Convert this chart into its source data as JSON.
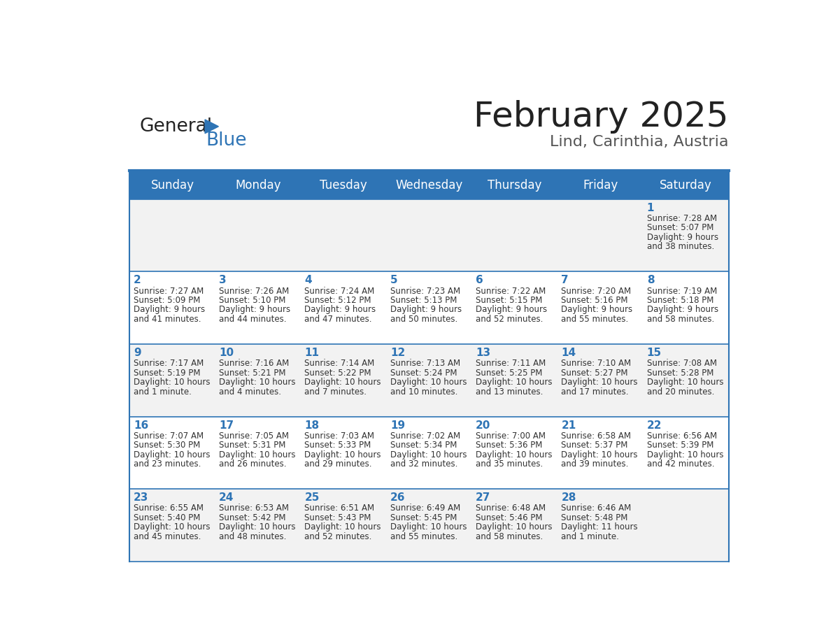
{
  "title": "February 2025",
  "subtitle": "Lind, Carinthia, Austria",
  "days_of_week": [
    "Sunday",
    "Monday",
    "Tuesday",
    "Wednesday",
    "Thursday",
    "Friday",
    "Saturday"
  ],
  "header_bg_color": "#2E74B5",
  "header_text_color": "#FFFFFF",
  "cell_bg_color_odd": "#F2F2F2",
  "cell_bg_color_even": "#FFFFFF",
  "day_number_color": "#2E74B5",
  "text_color": "#333333",
  "border_color": "#2E74B5",
  "logo_general_color": "#222222",
  "logo_blue_color": "#2E74B5",
  "calendar_data": [
    [
      null,
      null,
      null,
      null,
      null,
      null,
      {
        "day": 1,
        "sunrise": "7:28 AM",
        "sunset": "5:07 PM",
        "daylight": "9 hours and 38 minutes."
      }
    ],
    [
      {
        "day": 2,
        "sunrise": "7:27 AM",
        "sunset": "5:09 PM",
        "daylight": "9 hours and 41 minutes."
      },
      {
        "day": 3,
        "sunrise": "7:26 AM",
        "sunset": "5:10 PM",
        "daylight": "9 hours and 44 minutes."
      },
      {
        "day": 4,
        "sunrise": "7:24 AM",
        "sunset": "5:12 PM",
        "daylight": "9 hours and 47 minutes."
      },
      {
        "day": 5,
        "sunrise": "7:23 AM",
        "sunset": "5:13 PM",
        "daylight": "9 hours and 50 minutes."
      },
      {
        "day": 6,
        "sunrise": "7:22 AM",
        "sunset": "5:15 PM",
        "daylight": "9 hours and 52 minutes."
      },
      {
        "day": 7,
        "sunrise": "7:20 AM",
        "sunset": "5:16 PM",
        "daylight": "9 hours and 55 minutes."
      },
      {
        "day": 8,
        "sunrise": "7:19 AM",
        "sunset": "5:18 PM",
        "daylight": "9 hours and 58 minutes."
      }
    ],
    [
      {
        "day": 9,
        "sunrise": "7:17 AM",
        "sunset": "5:19 PM",
        "daylight": "10 hours and 1 minute."
      },
      {
        "day": 10,
        "sunrise": "7:16 AM",
        "sunset": "5:21 PM",
        "daylight": "10 hours and 4 minutes."
      },
      {
        "day": 11,
        "sunrise": "7:14 AM",
        "sunset": "5:22 PM",
        "daylight": "10 hours and 7 minutes."
      },
      {
        "day": 12,
        "sunrise": "7:13 AM",
        "sunset": "5:24 PM",
        "daylight": "10 hours and 10 minutes."
      },
      {
        "day": 13,
        "sunrise": "7:11 AM",
        "sunset": "5:25 PM",
        "daylight": "10 hours and 13 minutes."
      },
      {
        "day": 14,
        "sunrise": "7:10 AM",
        "sunset": "5:27 PM",
        "daylight": "10 hours and 17 minutes."
      },
      {
        "day": 15,
        "sunrise": "7:08 AM",
        "sunset": "5:28 PM",
        "daylight": "10 hours and 20 minutes."
      }
    ],
    [
      {
        "day": 16,
        "sunrise": "7:07 AM",
        "sunset": "5:30 PM",
        "daylight": "10 hours and 23 minutes."
      },
      {
        "day": 17,
        "sunrise": "7:05 AM",
        "sunset": "5:31 PM",
        "daylight": "10 hours and 26 minutes."
      },
      {
        "day": 18,
        "sunrise": "7:03 AM",
        "sunset": "5:33 PM",
        "daylight": "10 hours and 29 minutes."
      },
      {
        "day": 19,
        "sunrise": "7:02 AM",
        "sunset": "5:34 PM",
        "daylight": "10 hours and 32 minutes."
      },
      {
        "day": 20,
        "sunrise": "7:00 AM",
        "sunset": "5:36 PM",
        "daylight": "10 hours and 35 minutes."
      },
      {
        "day": 21,
        "sunrise": "6:58 AM",
        "sunset": "5:37 PM",
        "daylight": "10 hours and 39 minutes."
      },
      {
        "day": 22,
        "sunrise": "6:56 AM",
        "sunset": "5:39 PM",
        "daylight": "10 hours and 42 minutes."
      }
    ],
    [
      {
        "day": 23,
        "sunrise": "6:55 AM",
        "sunset": "5:40 PM",
        "daylight": "10 hours and 45 minutes."
      },
      {
        "day": 24,
        "sunrise": "6:53 AM",
        "sunset": "5:42 PM",
        "daylight": "10 hours and 48 minutes."
      },
      {
        "day": 25,
        "sunrise": "6:51 AM",
        "sunset": "5:43 PM",
        "daylight": "10 hours and 52 minutes."
      },
      {
        "day": 26,
        "sunrise": "6:49 AM",
        "sunset": "5:45 PM",
        "daylight": "10 hours and 55 minutes."
      },
      {
        "day": 27,
        "sunrise": "6:48 AM",
        "sunset": "5:46 PM",
        "daylight": "10 hours and 58 minutes."
      },
      {
        "day": 28,
        "sunrise": "6:46 AM",
        "sunset": "5:48 PM",
        "daylight": "11 hours and 1 minute."
      },
      null
    ]
  ]
}
